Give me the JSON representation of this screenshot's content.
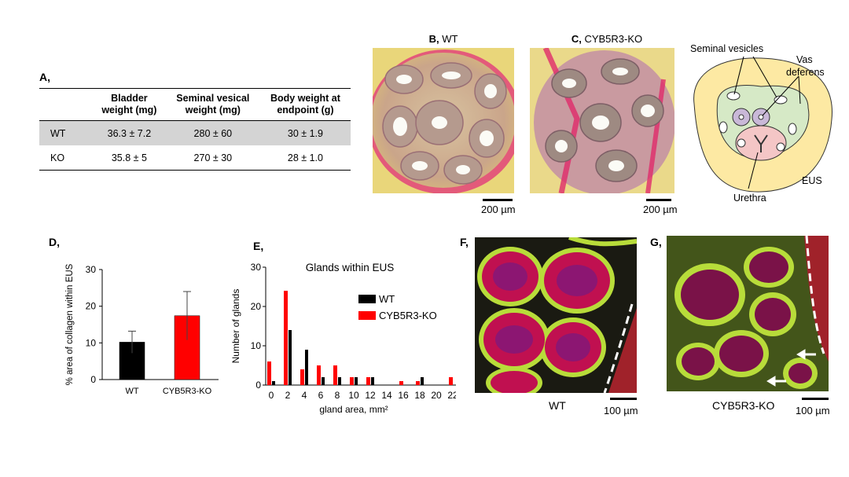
{
  "panel_a": {
    "letter": "A,",
    "headers": [
      "",
      "Bladder\nweight (mg)",
      "Seminal vesical\nweight (mg)",
      "Body weight at\nendpoint (g)"
    ],
    "rows": [
      {
        "label": "WT",
        "values": [
          "36.3 ± 7.2",
          "280 ± 60",
          "30 ± 1.9"
        ]
      },
      {
        "label": "KO",
        "values": [
          "35.8 ± 5",
          "270 ± 30",
          "28 ± 1.0"
        ]
      }
    ]
  },
  "panel_b": {
    "letter": "B,",
    "title": "WT",
    "scale": "200 µm"
  },
  "panel_c": {
    "letter": "C,",
    "title": "CYB5R3-KO",
    "scale": "200 µm"
  },
  "schematic": {
    "labels": {
      "seminal": "Seminal vesicles",
      "vas1": "Vas",
      "vas2": "deferens",
      "eus": "EUS",
      "urethra": "Urethra"
    },
    "colors": {
      "outer": "#fde9a3",
      "inner": "#d6e9c6",
      "urethra": "#f4c6c6",
      "vas": "#c9b8d8"
    }
  },
  "panel_d": {
    "letter": "D,"
  },
  "panel_e": {
    "letter": "E,"
  },
  "panel_f": {
    "letter": "F,",
    "caption": "WT",
    "scale": "100 µm"
  },
  "panel_g": {
    "letter": "G,",
    "caption": "CYB5R3-KO",
    "scale": "100 µm"
  },
  "chart_data": [
    {
      "type": "bar",
      "panel": "D",
      "categories": [
        "WT",
        "CYB5R3-KO"
      ],
      "values": [
        10.2,
        17.4
      ],
      "errors": [
        3.0,
        6.6
      ],
      "colors": [
        "#000000",
        "#ff0000"
      ],
      "ylabel": "% area of collagen within EUS",
      "ylim": [
        0,
        30
      ],
      "yticks": [
        0,
        10,
        20,
        30
      ]
    },
    {
      "type": "bar",
      "panel": "E",
      "title": "Glands within EUS",
      "xlabel": "gland area, mm²",
      "ylabel": "Number of glands",
      "x": [
        0,
        2,
        4,
        6,
        8,
        10,
        12,
        14,
        16,
        18,
        20,
        22
      ],
      "ylim": [
        0,
        30
      ],
      "yticks": [
        0,
        10,
        20,
        30
      ],
      "series": [
        {
          "name": "WT",
          "color": "#000000",
          "values": [
            1,
            14,
            9,
            2,
            2,
            2,
            2,
            0,
            0,
            2,
            0,
            0
          ]
        },
        {
          "name": "CYB5R3-KO",
          "color": "#ff0000",
          "values": [
            6,
            24,
            4,
            5,
            5,
            2,
            2,
            0,
            1,
            1,
            0,
            2
          ]
        }
      ]
    }
  ]
}
